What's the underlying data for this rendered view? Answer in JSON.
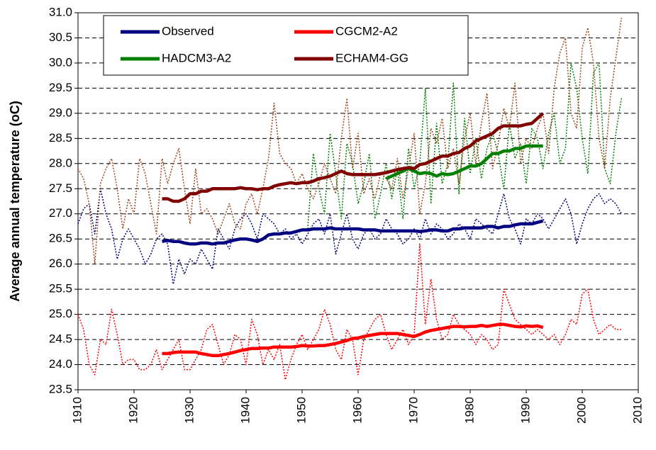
{
  "chart_data": {
    "type": "line",
    "ylabel": "Average annual temperature (oC)",
    "x": [
      1910,
      1911,
      1912,
      1913,
      1914,
      1915,
      1916,
      1917,
      1918,
      1919,
      1920,
      1921,
      1922,
      1923,
      1924,
      1925,
      1926,
      1927,
      1928,
      1929,
      1930,
      1931,
      1932,
      1933,
      1934,
      1935,
      1936,
      1937,
      1938,
      1939,
      1940,
      1941,
      1942,
      1943,
      1944,
      1945,
      1946,
      1947,
      1948,
      1949,
      1950,
      1951,
      1952,
      1953,
      1954,
      1955,
      1956,
      1957,
      1958,
      1959,
      1960,
      1961,
      1962,
      1963,
      1964,
      1965,
      1966,
      1967,
      1968,
      1969,
      1970,
      1971,
      1972,
      1973,
      1974,
      1975,
      1976,
      1977,
      1978,
      1979,
      1980,
      1981,
      1982,
      1983,
      1984,
      1985,
      1986,
      1987,
      1988,
      1989,
      1990,
      1991,
      1992,
      1993,
      1994,
      1995,
      1996,
      1997,
      1998,
      1999,
      2000,
      2001,
      2002,
      2003,
      2004,
      2005,
      2006,
      2007
    ],
    "series": [
      {
        "name": "Observed",
        "color": "#000080",
        "annual_color": "#000080",
        "values": [
          null,
          null,
          null,
          null,
          null,
          null,
          null,
          null,
          null,
          null,
          null,
          null,
          null,
          null,
          null,
          26.45,
          26.47,
          26.45,
          26.45,
          26.42,
          26.4,
          26.4,
          26.42,
          26.42,
          26.4,
          26.42,
          26.42,
          26.45,
          26.48,
          26.5,
          26.5,
          26.48,
          26.45,
          26.5,
          26.58,
          26.6,
          26.6,
          26.62,
          26.62,
          26.65,
          26.68,
          26.68,
          26.7,
          26.7,
          26.7,
          26.72,
          26.7,
          26.7,
          26.7,
          26.7,
          26.7,
          26.68,
          26.68,
          26.68,
          26.66,
          26.66,
          26.66,
          26.66,
          26.66,
          26.66,
          26.66,
          26.65,
          26.66,
          26.68,
          26.68,
          26.66,
          26.66,
          26.7,
          26.7,
          26.72,
          26.72,
          26.72,
          26.72,
          26.75,
          26.75,
          26.72,
          26.75,
          26.75,
          26.78,
          26.8,
          26.8,
          26.8,
          26.83,
          26.86,
          null,
          null,
          null,
          null,
          null,
          null,
          null,
          null,
          null,
          null,
          null,
          null,
          null,
          null
        ],
        "annual": [
          26.8,
          27.1,
          27.2,
          26.6,
          27.5,
          27.0,
          26.7,
          26.1,
          26.5,
          26.7,
          26.5,
          26.3,
          26.0,
          26.2,
          26.5,
          26.6,
          26.4,
          25.6,
          26.1,
          25.8,
          26.1,
          26.0,
          26.3,
          26.1,
          25.9,
          26.7,
          26.5,
          26.3,
          26.7,
          26.9,
          27.0,
          26.8,
          26.5,
          27.0,
          26.9,
          26.8,
          26.6,
          26.7,
          26.5,
          26.6,
          26.4,
          26.6,
          26.8,
          26.9,
          26.6,
          27.0,
          26.2,
          26.6,
          27.0,
          26.5,
          26.3,
          26.6,
          26.7,
          26.5,
          26.6,
          26.9,
          26.7,
          26.6,
          26.4,
          26.5,
          26.7,
          26.5,
          26.9,
          26.6,
          26.8,
          26.7,
          26.5,
          26.6,
          26.8,
          26.7,
          26.5,
          26.9,
          26.8,
          26.7,
          26.6,
          27.0,
          27.4,
          26.9,
          26.7,
          26.4,
          26.9,
          26.8,
          27.0,
          26.9,
          26.7,
          26.9,
          27.1,
          27.3,
          27.0,
          26.4,
          26.8,
          27.1,
          27.3,
          27.4,
          27.2,
          27.3,
          27.2,
          27.0
        ]
      },
      {
        "name": "CGCM2-A2",
        "color": "#ff0000",
        "annual_color": "#ff0000",
        "values": [
          null,
          null,
          null,
          null,
          null,
          null,
          null,
          null,
          null,
          null,
          null,
          null,
          null,
          null,
          null,
          24.22,
          24.22,
          24.24,
          24.25,
          24.25,
          24.25,
          24.25,
          24.22,
          24.2,
          24.18,
          24.18,
          24.2,
          24.22,
          24.25,
          24.28,
          24.3,
          24.32,
          24.32,
          24.33,
          24.33,
          24.35,
          24.35,
          24.35,
          24.35,
          24.36,
          24.38,
          24.37,
          24.37,
          24.38,
          24.38,
          24.4,
          24.42,
          24.45,
          24.48,
          24.52,
          24.53,
          24.56,
          24.58,
          24.6,
          24.62,
          24.62,
          24.62,
          24.62,
          24.6,
          24.58,
          24.56,
          24.6,
          24.65,
          24.68,
          24.7,
          24.72,
          24.74,
          24.76,
          24.76,
          24.75,
          24.76,
          24.76,
          24.78,
          24.76,
          24.78,
          24.8,
          24.8,
          24.78,
          24.76,
          24.75,
          24.77,
          24.76,
          24.77,
          24.74,
          null,
          null,
          null,
          null,
          null,
          null,
          null,
          null,
          null,
          null,
          null,
          null,
          null,
          null
        ],
        "annual": [
          25.0,
          24.7,
          24.0,
          23.8,
          24.5,
          24.4,
          25.1,
          24.6,
          24.0,
          24.1,
          24.1,
          23.9,
          23.9,
          24.0,
          24.3,
          23.9,
          24.1,
          24.3,
          24.5,
          23.9,
          23.9,
          24.1,
          24.3,
          24.7,
          24.8,
          24.4,
          24.0,
          24.2,
          24.6,
          24.5,
          24.0,
          24.9,
          24.6,
          24.0,
          24.3,
          24.1,
          24.4,
          23.7,
          24.1,
          24.4,
          24.6,
          24.3,
          24.5,
          24.7,
          25.1,
          24.8,
          24.3,
          24.1,
          24.7,
          24.5,
          23.8,
          24.5,
          24.7,
          24.9,
          25.0,
          24.6,
          24.3,
          24.5,
          24.7,
          24.4,
          24.6,
          26.4,
          24.8,
          25.7,
          24.9,
          24.5,
          24.6,
          25.0,
          24.8,
          24.7,
          24.6,
          24.4,
          24.6,
          24.5,
          24.3,
          24.4,
          25.5,
          25.2,
          24.9,
          24.8,
          24.7,
          24.6,
          24.7,
          24.6,
          24.5,
          24.6,
          24.4,
          24.6,
          24.9,
          24.8,
          25.4,
          25.5,
          24.9,
          24.6,
          24.7,
          24.8,
          24.7,
          24.7
        ]
      },
      {
        "name": "HADCM3-A2",
        "color": "#008000",
        "annual_color": "#008000",
        "values": [
          null,
          null,
          null,
          null,
          null,
          null,
          null,
          null,
          null,
          null,
          null,
          null,
          null,
          null,
          null,
          null,
          null,
          null,
          null,
          null,
          null,
          null,
          null,
          null,
          null,
          null,
          null,
          null,
          null,
          null,
          null,
          null,
          null,
          null,
          null,
          null,
          null,
          null,
          null,
          null,
          null,
          null,
          null,
          null,
          null,
          null,
          null,
          null,
          null,
          null,
          null,
          null,
          null,
          null,
          null,
          27.7,
          27.75,
          27.8,
          27.85,
          27.9,
          27.85,
          27.8,
          27.82,
          27.8,
          27.75,
          27.8,
          27.78,
          27.8,
          27.85,
          27.9,
          27.95,
          27.95,
          28.0,
          28.1,
          28.2,
          28.2,
          28.25,
          28.25,
          28.3,
          28.3,
          28.35,
          28.35,
          28.35,
          28.35,
          null,
          null,
          null,
          null,
          null,
          null,
          null,
          null,
          null,
          null,
          null,
          null,
          null,
          null
        ],
        "annual": [
          null,
          null,
          null,
          null,
          null,
          null,
          null,
          null,
          null,
          null,
          null,
          null,
          null,
          null,
          null,
          null,
          null,
          null,
          null,
          null,
          null,
          null,
          null,
          null,
          null,
          null,
          null,
          null,
          null,
          null,
          null,
          null,
          null,
          null,
          null,
          null,
          null,
          null,
          null,
          null,
          null,
          26.7,
          28.2,
          27.5,
          27.0,
          28.6,
          27.8,
          26.9,
          28.4,
          28.0,
          27.2,
          27.6,
          28.2,
          26.9,
          27.4,
          28.0,
          27.3,
          27.9,
          26.9,
          28.3,
          27.5,
          28.0,
          29.5,
          27.2,
          28.8,
          27.6,
          28.0,
          29.6,
          27.4,
          28.9,
          27.8,
          28.5,
          27.7,
          28.3,
          28.6,
          28.2,
          27.5,
          28.8,
          28.1,
          28.4,
          27.6,
          28.7,
          28.5,
          27.9,
          28.6,
          29.0,
          28.0,
          28.3,
          30.0,
          29.5,
          28.5,
          27.8,
          29.8,
          30.0,
          27.9,
          27.6,
          28.6,
          29.3
        ]
      },
      {
        "name": "ECHAM4-GG",
        "color": "#800000",
        "annual_color": "#a0461e",
        "values": [
          null,
          null,
          null,
          null,
          null,
          null,
          null,
          null,
          null,
          null,
          null,
          null,
          null,
          null,
          null,
          27.3,
          27.3,
          27.25,
          27.25,
          27.3,
          27.4,
          27.4,
          27.45,
          27.45,
          27.5,
          27.5,
          27.5,
          27.5,
          27.5,
          27.52,
          27.5,
          27.5,
          27.48,
          27.5,
          27.5,
          27.55,
          27.58,
          27.6,
          27.62,
          27.6,
          27.62,
          27.62,
          27.65,
          27.7,
          27.72,
          27.75,
          27.8,
          27.85,
          27.8,
          27.78,
          27.78,
          27.78,
          27.78,
          27.78,
          27.8,
          27.82,
          27.85,
          27.88,
          27.9,
          27.92,
          27.9,
          27.98,
          28.0,
          28.05,
          28.1,
          28.15,
          28.15,
          28.2,
          28.22,
          28.3,
          28.35,
          28.45,
          28.5,
          28.55,
          28.6,
          28.7,
          28.75,
          28.75,
          28.75,
          28.75,
          28.78,
          28.8,
          28.9,
          29.0,
          null,
          null,
          null,
          null,
          null,
          null,
          null,
          null,
          null,
          null,
          null,
          null,
          null,
          null
        ],
        "annual": [
          27.9,
          27.7,
          27.2,
          26.0,
          27.6,
          27.9,
          28.1,
          27.5,
          26.7,
          27.3,
          27.0,
          28.1,
          27.8,
          27.2,
          26.6,
          28.1,
          27.6,
          28.0,
          28.3,
          27.5,
          26.8,
          27.9,
          27.0,
          27.1,
          26.9,
          26.6,
          26.9,
          27.2,
          26.8,
          26.7,
          27.2,
          27.4,
          27.0,
          27.5,
          28.1,
          29.2,
          28.2,
          28.0,
          27.9,
          27.6,
          27.8,
          27.5,
          27.3,
          27.6,
          28.0,
          27.7,
          27.4,
          28.5,
          29.3,
          27.9,
          28.6,
          27.4,
          27.7,
          27.3,
          27.8,
          27.7,
          27.5,
          28.1,
          27.3,
          27.9,
          28.6,
          27.0,
          27.6,
          28.7,
          28.4,
          28.9,
          27.9,
          28.3,
          27.6,
          28.5,
          29.0,
          28.0,
          28.8,
          29.4,
          27.9,
          28.4,
          29.1,
          28.7,
          29.6,
          28.0,
          28.5,
          28.3,
          28.7,
          29.0,
          28.2,
          29.5,
          30.2,
          30.5,
          29.0,
          28.7,
          30.3,
          30.7,
          30.0,
          28.5,
          27.9,
          29.3,
          30.1,
          30.9
        ]
      }
    ],
    "xlim": [
      1910,
      2010
    ],
    "xticks": [
      1910,
      1920,
      1930,
      1940,
      1950,
      1960,
      1970,
      1980,
      1990,
      2000,
      2010
    ],
    "ylim": [
      23.5,
      31.0
    ],
    "yticks": [
      23.5,
      {
        "value": 24,
        "label": "24.0"
      },
      24.5,
      {
        "value": 25,
        "label": "25.0"
      },
      25.5,
      {
        "value": 26,
        "label": "26.0"
      },
      26.5,
      {
        "value": 27,
        "label": "27.0"
      },
      27.5,
      {
        "value": 28,
        "label": "28.0"
      },
      28.5,
      {
        "value": 29,
        "label": "29.0"
      },
      29.5,
      {
        "value": 30,
        "label": "30.0"
      },
      30.5,
      {
        "value": 31,
        "label": "31.0"
      }
    ],
    "grid": true
  }
}
